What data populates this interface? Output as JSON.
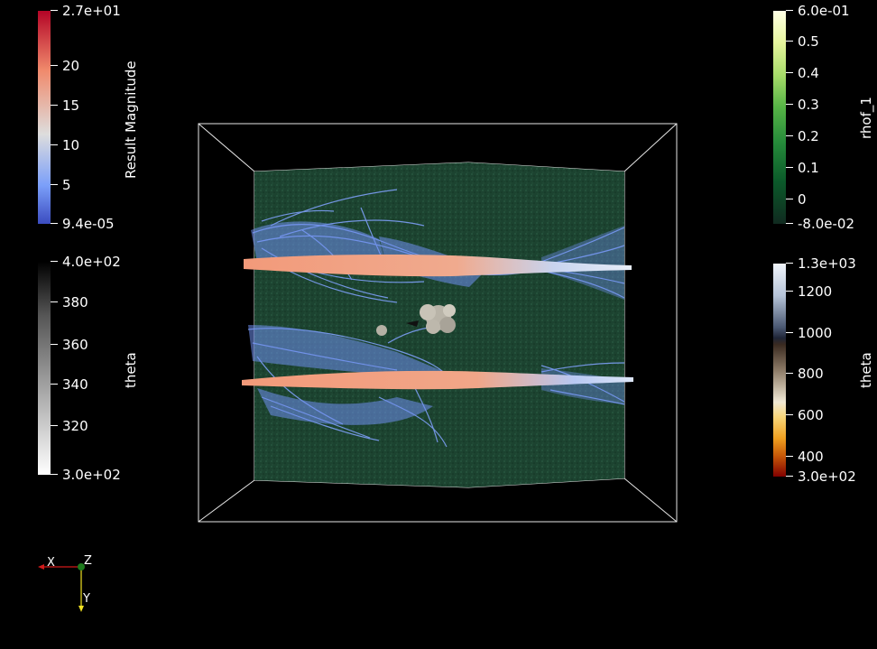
{
  "colorbars": {
    "result_magnitude": {
      "title": "Result Magnitude",
      "ticks": [
        "2.7e+01",
        "20",
        "15",
        "10",
        "5",
        "9.4e-05"
      ]
    },
    "theta_gray": {
      "title": "theta",
      "ticks": [
        "4.0e+02",
        "380",
        "360",
        "340",
        "320",
        "3.0e+02"
      ]
    },
    "rhof_1": {
      "title": "rhof_1",
      "ticks": [
        "6.0e-01",
        "0.5",
        "0.4",
        "0.3",
        "0.2",
        "0.1",
        "0",
        "-8.0e-02"
      ]
    },
    "theta_heat": {
      "title": "theta",
      "ticks": [
        "1.3e+03",
        "1200",
        "1000",
        "800",
        "600",
        "400",
        "3.0e+02"
      ]
    }
  },
  "orientation_axes": {
    "x_label": "X",
    "y_label": "Y",
    "z_label": "Z"
  },
  "colors": {
    "background": "#000000",
    "ground": "#1d4431",
    "stream_blue": "#7b9cf5",
    "stream_orange": "#f2a184",
    "axis_x": "#d11a1a",
    "axis_y": "#f2e222",
    "axis_z": "#1d7a1d"
  }
}
